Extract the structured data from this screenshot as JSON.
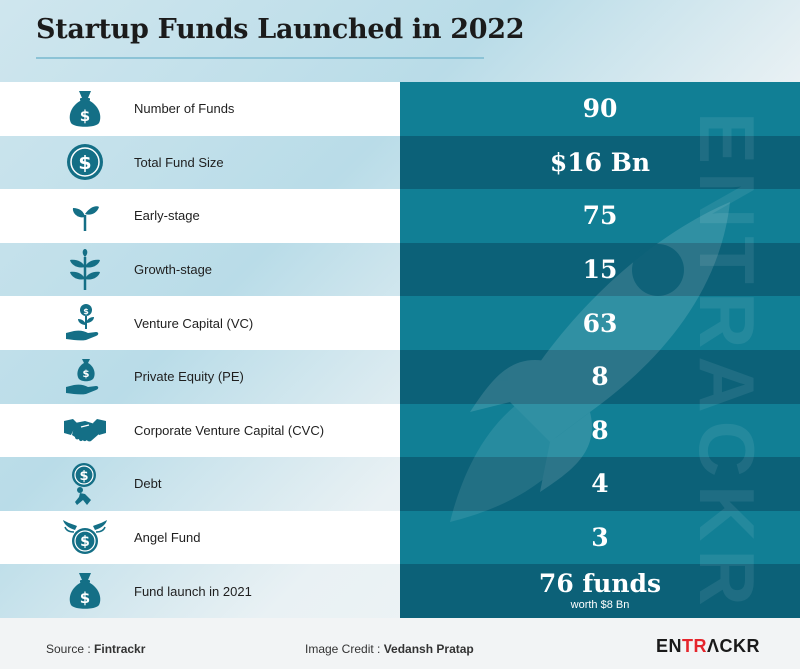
{
  "title": "Startup Funds Launched in 2022",
  "chart_data": {
    "type": "table",
    "title": "Startup Funds Launched in 2022",
    "rows": [
      {
        "label": "Number of Funds",
        "value": "90",
        "icon": "money-bag-icon"
      },
      {
        "label": "Total Fund Size",
        "value": "$16 Bn",
        "icon": "dollar-coin-icon"
      },
      {
        "label": "Early-stage",
        "value": "75",
        "icon": "sprout-icon"
      },
      {
        "label": "Growth-stage",
        "value": "15",
        "icon": "plant-icon"
      },
      {
        "label": "Venture Capital (VC)",
        "value": "63",
        "icon": "hand-plant-coin-icon"
      },
      {
        "label": "Private Equity (PE)",
        "value": "8",
        "icon": "hand-money-bag-icon"
      },
      {
        "label": "Corporate Venture Capital (CVC)",
        "value": "8",
        "icon": "handshake-icon"
      },
      {
        "label": "Debt",
        "value": "4",
        "icon": "person-pushing-coin-icon"
      },
      {
        "label": "Angel Fund",
        "value": "3",
        "icon": "winged-coin-icon"
      },
      {
        "label": "Fund launch in 2021",
        "value": "76 funds",
        "sub": "worth $8 Bn",
        "icon": "money-bag-icon"
      }
    ]
  },
  "footer": {
    "source_label": "Source : ",
    "source_value": "Fintrackr",
    "credit_label": "Image Credit : ",
    "credit_value": "Vedansh Pratap",
    "brand_pre": "EN",
    "brand_accent": "TR",
    "brand_mid": "ΛC",
    "brand_post": "KR"
  },
  "watermark_text": "ENTRACKR",
  "colors": {
    "row_light_value": "#117f95",
    "row_dark_value": "#0c6178",
    "icon": "#146f86",
    "brand_accent": "#e5252c"
  }
}
